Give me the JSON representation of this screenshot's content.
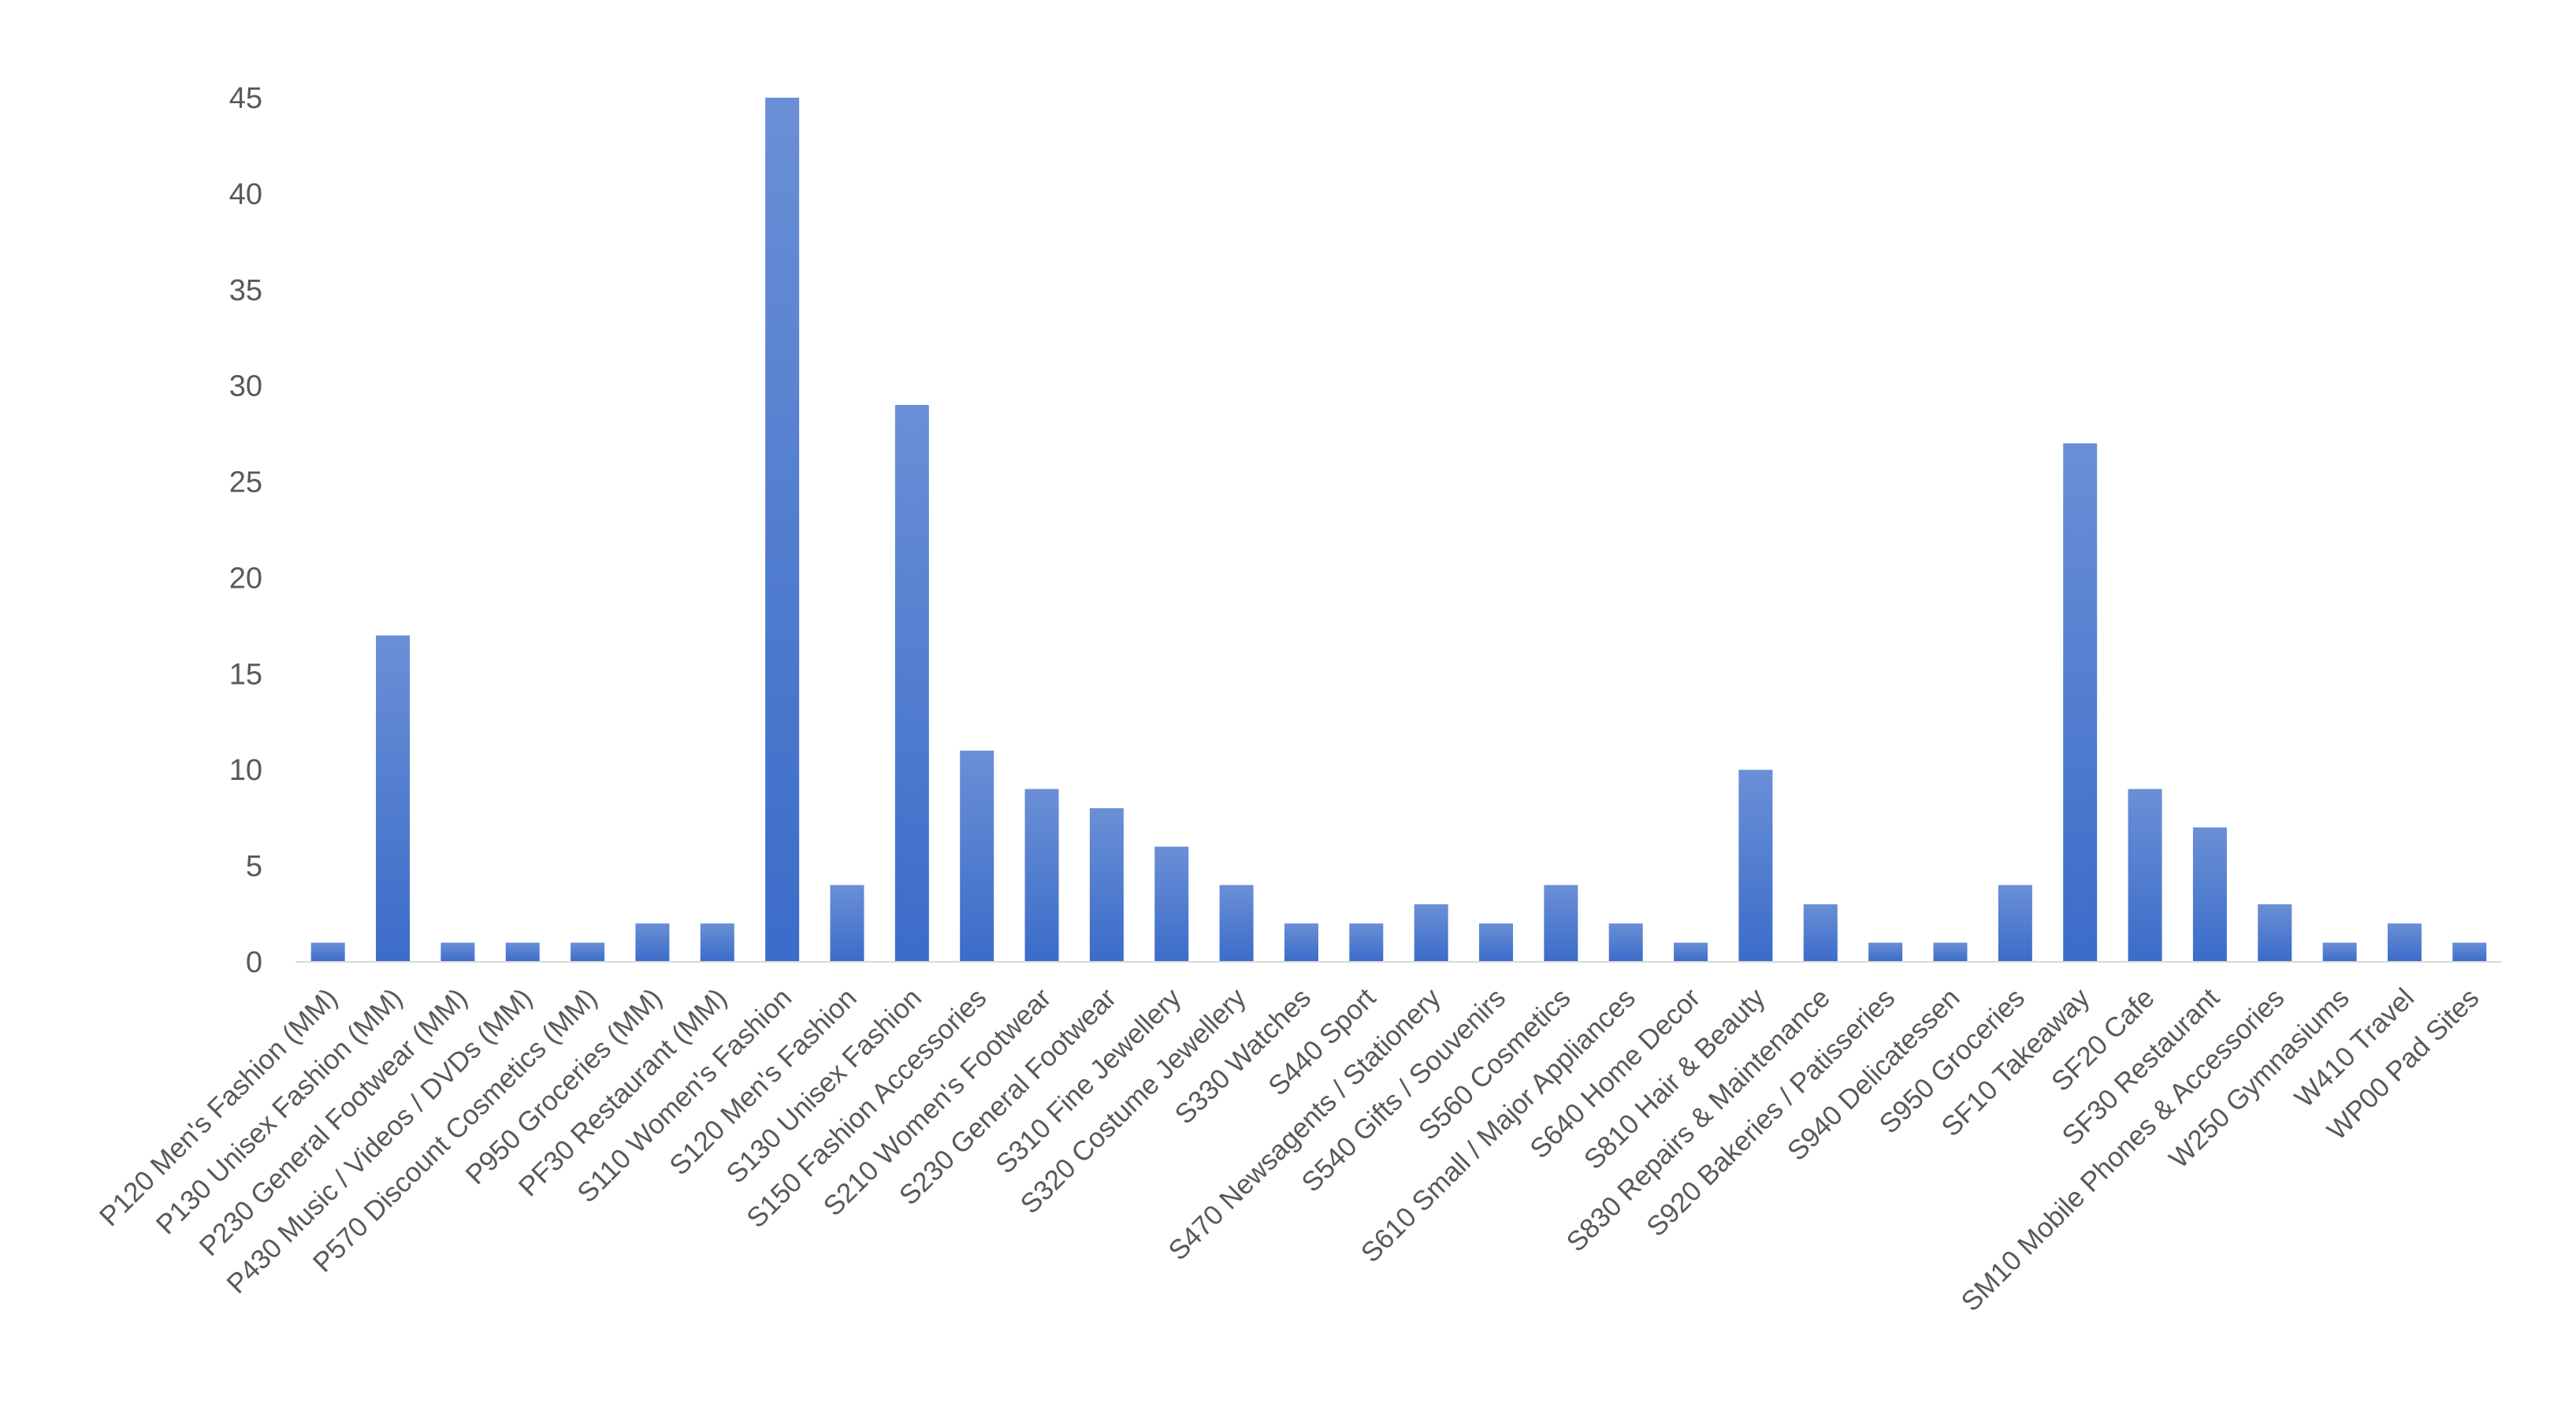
{
  "chart_data": {
    "type": "bar",
    "title": "",
    "xlabel": "",
    "ylabel": "",
    "ylim": [
      0,
      45
    ],
    "yticks": [
      0,
      5,
      10,
      15,
      20,
      25,
      30,
      35,
      40,
      45
    ],
    "grid": false,
    "legend": "none",
    "bar_color_top": "#6a8fd6",
    "bar_color_bottom": "#3b6cc9",
    "categories": [
      "P120 Men's Fashion (MM)",
      "P130 Unisex Fashion (MM)",
      "P230 General Footwear (MM)",
      "P430 Music / Videos / DVDs (MM)",
      "P570 Discount Cosmetics (MM)",
      "P950 Groceries (MM)",
      "PF30 Restaurant (MM)",
      "S110 Women's Fashion",
      "S120 Men's Fashion",
      "S130 Unisex Fashion",
      "S150 Fashion Accessories",
      "S210 Women's Footwear",
      "S230 General Footwear",
      "S310 Fine Jewellery",
      "S320 Costume Jewellery",
      "S330 Watches",
      "S440 Sport",
      "S470 Newsagents / Stationery",
      "S540 Gifts / Souvenirs",
      "S560 Cosmetics",
      "S610 Small / Major Appliances",
      "S640 Home Decor",
      "S810 Hair & Beauty",
      "S830 Repairs & Maintenance",
      "S920 Bakeries / Patisseries",
      "S940 Delicatessen",
      "S950 Groceries",
      "SF10 Takeaway",
      "SF20 Cafe",
      "SF30 Restaurant",
      "SM10 Mobile Phones & Accessories",
      "W250 Gymnasiums",
      "W410 Travel",
      "WP00 Pad Sites"
    ],
    "values": [
      1,
      17,
      1,
      1,
      1,
      2,
      2,
      45,
      4,
      29,
      11,
      9,
      8,
      6,
      4,
      2,
      2,
      3,
      2,
      4,
      2,
      1,
      10,
      3,
      1,
      1,
      4,
      27,
      9,
      7,
      3,
      1,
      2,
      1
    ]
  }
}
